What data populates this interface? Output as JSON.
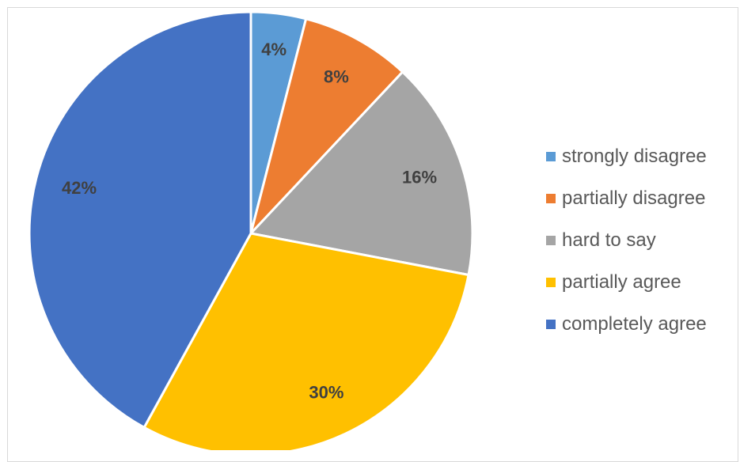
{
  "chart_data": {
    "type": "pie",
    "title": "",
    "categories": [
      "strongly disagree",
      "partially disagree",
      "hard to say",
      "partially agree",
      "completely agree"
    ],
    "values": [
      4,
      8,
      16,
      30,
      42
    ],
    "data_labels": [
      "4%",
      "8%",
      "16%",
      "30%",
      "42%"
    ],
    "colors": [
      "#5B9BD5",
      "#ED7D31",
      "#A5A5A5",
      "#FFC000",
      "#4472C4"
    ],
    "start_angle_deg": 0,
    "direction": "clockwise",
    "legend_position": "right"
  },
  "legend": {
    "items": [
      {
        "label": "strongly disagree",
        "color": "#5B9BD5"
      },
      {
        "label": "partially disagree",
        "color": "#ED7D31"
      },
      {
        "label": "hard to say",
        "color": "#A5A5A5"
      },
      {
        "label": "partially agree",
        "color": "#FFC000"
      },
      {
        "label": "completely agree",
        "color": "#4472C4"
      }
    ]
  }
}
